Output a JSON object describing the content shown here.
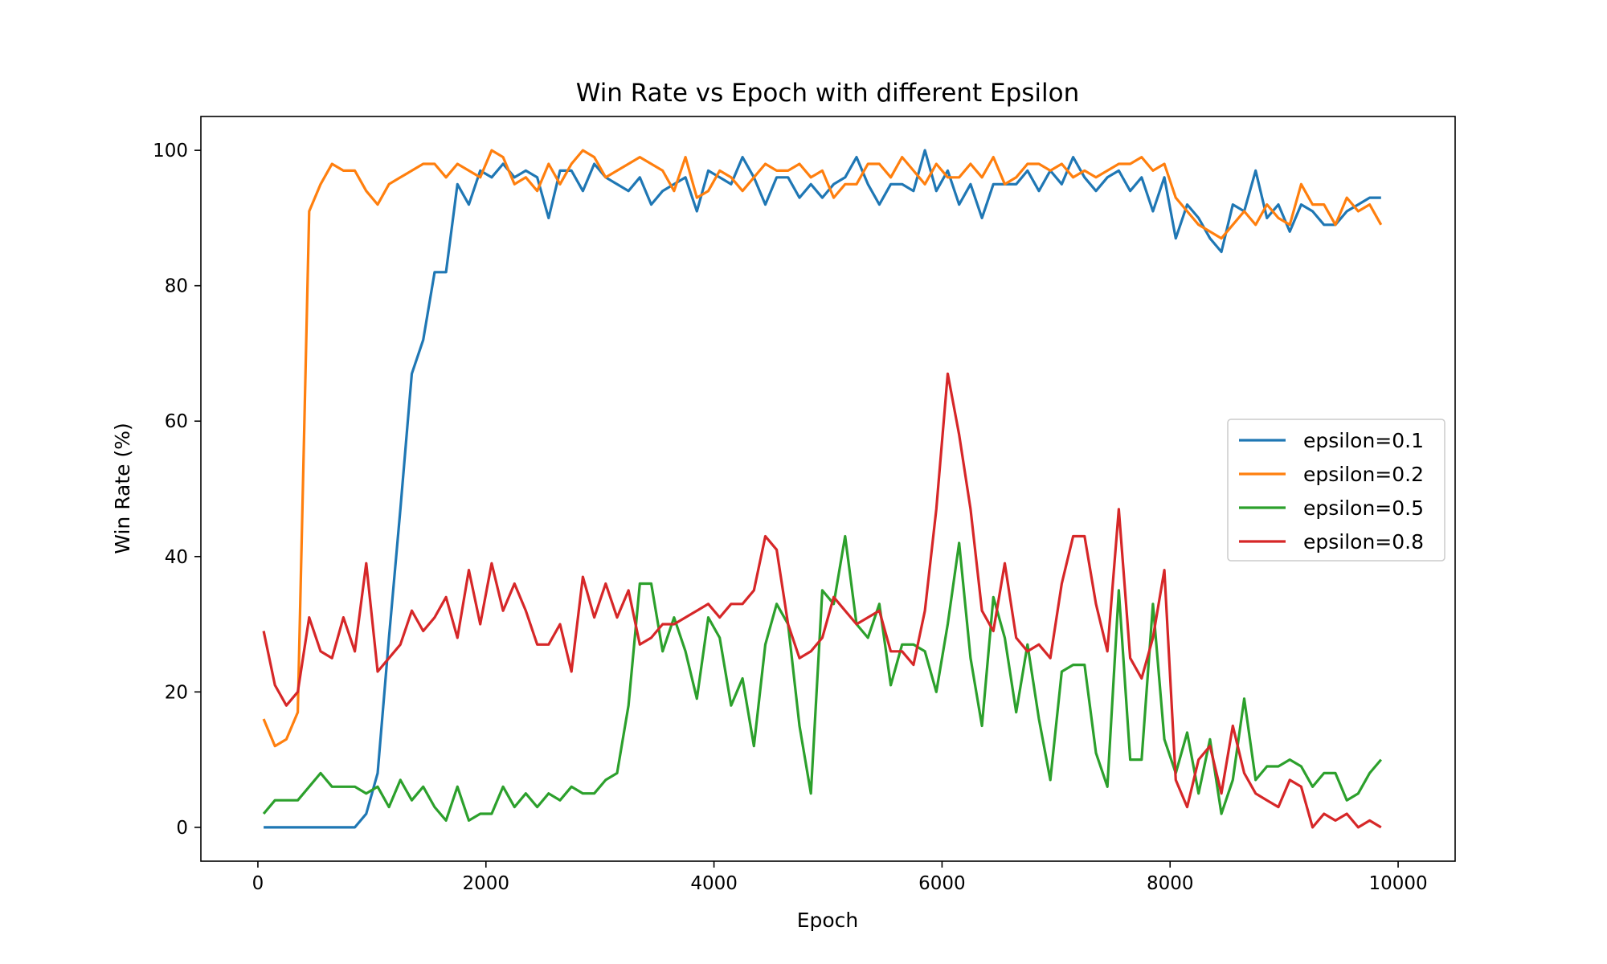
{
  "chart_data": {
    "type": "line",
    "title": "Win Rate vs Epoch with different Epsilon",
    "xlabel": "Epoch",
    "ylabel": "Win Rate (%)",
    "xlim": [
      -500,
      10500
    ],
    "ylim": [
      -5,
      105
    ],
    "xticks": [
      0,
      2000,
      4000,
      6000,
      8000,
      10000
    ],
    "yticks": [
      0,
      20,
      40,
      60,
      80,
      100
    ],
    "grid": false,
    "legend_position": "center-right",
    "x": [
      50,
      150,
      250,
      350,
      450,
      550,
      650,
      750,
      850,
      950,
      1050,
      1150,
      1250,
      1350,
      1450,
      1550,
      1650,
      1750,
      1850,
      1950,
      2050,
      2150,
      2250,
      2350,
      2450,
      2550,
      2650,
      2750,
      2850,
      2950,
      3050,
      3150,
      3250,
      3350,
      3450,
      3550,
      3650,
      3750,
      3850,
      3950,
      4050,
      4150,
      4250,
      4350,
      4450,
      4550,
      4650,
      4750,
      4850,
      4950,
      5050,
      5150,
      5250,
      5350,
      5450,
      5550,
      5650,
      5750,
      5850,
      5950,
      6050,
      6150,
      6250,
      6350,
      6450,
      6550,
      6650,
      6750,
      6850,
      6950,
      7050,
      7150,
      7250,
      7350,
      7450,
      7550,
      7650,
      7750,
      7850,
      7950,
      8050,
      8150,
      8250,
      8350,
      8450,
      8550,
      8650,
      8750,
      8850,
      8950,
      9050,
      9150,
      9250,
      9350,
      9450,
      9550,
      9650,
      9750,
      9850
    ],
    "series": [
      {
        "name": "epsilon=0.1",
        "color": "#1f77b4",
        "values": [
          0,
          0,
          0,
          0,
          0,
          0,
          0,
          0,
          0,
          2,
          8,
          28,
          47,
          67,
          72,
          82,
          82,
          95,
          92,
          97,
          96,
          98,
          96,
          97,
          96,
          90,
          97,
          97,
          94,
          98,
          96,
          95,
          94,
          96,
          92,
          94,
          95,
          96,
          91,
          97,
          96,
          95,
          99,
          96,
          92,
          96,
          96,
          93,
          95,
          93,
          95,
          96,
          99,
          95,
          92,
          95,
          95,
          94,
          100,
          94,
          97,
          92,
          95,
          90,
          95,
          95,
          95,
          97,
          94,
          97,
          95,
          99,
          96,
          94,
          96,
          97,
          94,
          96,
          91,
          96,
          87,
          92,
          90,
          87,
          85,
          92,
          91,
          97,
          90,
          92,
          88,
          92,
          91,
          89,
          89,
          91,
          92,
          93,
          93
        ]
      },
      {
        "name": "epsilon=0.2",
        "color": "#ff7f0e",
        "values": [
          16,
          12,
          13,
          17,
          91,
          95,
          98,
          97,
          97,
          94,
          92,
          95,
          96,
          97,
          98,
          98,
          96,
          98,
          97,
          96,
          100,
          99,
          95,
          96,
          94,
          98,
          95,
          98,
          100,
          99,
          96,
          97,
          98,
          99,
          98,
          97,
          94,
          99,
          93,
          94,
          97,
          96,
          94,
          96,
          98,
          97,
          97,
          98,
          96,
          97,
          93,
          95,
          95,
          98,
          98,
          96,
          99,
          97,
          95,
          98,
          96,
          96,
          98,
          96,
          99,
          95,
          96,
          98,
          98,
          97,
          98,
          96,
          97,
          96,
          97,
          98,
          98,
          99,
          97,
          98,
          93,
          91,
          89,
          88,
          87,
          89,
          91,
          89,
          92,
          90,
          89,
          95,
          92,
          92,
          89,
          93,
          91,
          92,
          89
        ]
      },
      {
        "name": "epsilon=0.5",
        "color": "#2ca02c",
        "values": [
          2,
          4,
          4,
          4,
          6,
          8,
          6,
          6,
          6,
          5,
          6,
          3,
          7,
          4,
          6,
          3,
          1,
          6,
          1,
          2,
          2,
          6,
          3,
          5,
          3,
          5,
          4,
          6,
          5,
          5,
          7,
          8,
          18,
          36,
          36,
          26,
          31,
          26,
          19,
          31,
          28,
          18,
          22,
          12,
          27,
          33,
          30,
          15,
          5,
          35,
          33,
          43,
          30,
          28,
          33,
          21,
          27,
          27,
          26,
          20,
          30,
          42,
          25,
          15,
          34,
          28,
          17,
          27,
          16,
          7,
          23,
          24,
          24,
          11,
          6,
          35,
          10,
          10,
          33,
          13,
          8,
          14,
          5,
          13,
          2,
          7,
          19,
          7,
          9,
          9,
          10,
          9,
          6,
          8,
          8,
          4,
          5,
          8,
          10
        ]
      },
      {
        "name": "epsilon=0.8",
        "color": "#d62728",
        "values": [
          29,
          21,
          18,
          20,
          31,
          26,
          25,
          31,
          26,
          39,
          23,
          25,
          27,
          32,
          29,
          31,
          34,
          28,
          38,
          30,
          39,
          32,
          36,
          32,
          27,
          27,
          30,
          23,
          37,
          31,
          36,
          31,
          35,
          27,
          28,
          30,
          30,
          31,
          32,
          33,
          31,
          33,
          33,
          35,
          43,
          41,
          30,
          25,
          26,
          28,
          34,
          32,
          30,
          31,
          32,
          26,
          26,
          24,
          32,
          47,
          67,
          58,
          47,
          32,
          29,
          39,
          28,
          26,
          27,
          25,
          36,
          43,
          43,
          33,
          26,
          47,
          25,
          22,
          28,
          38,
          7,
          3,
          10,
          12,
          5,
          15,
          8,
          5,
          4,
          3,
          7,
          6,
          0,
          2,
          1,
          2,
          0,
          1,
          0
        ]
      }
    ]
  }
}
